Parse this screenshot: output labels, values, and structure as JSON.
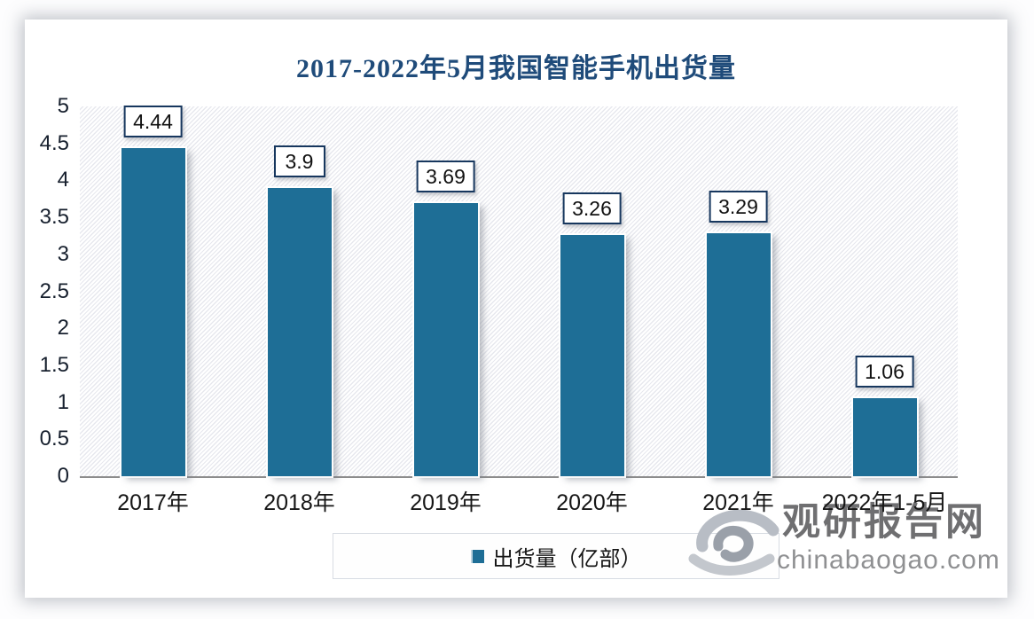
{
  "chart_data": {
    "type": "bar",
    "title": "2017-2022年5月我国智能手机出货量",
    "title_color": "#1F4B7A",
    "categories": [
      "2017年",
      "2018年",
      "2019年",
      "2020年",
      "2021年",
      "2022年1-5月"
    ],
    "values": [
      4.44,
      3.9,
      3.69,
      3.26,
      3.29,
      1.06
    ],
    "value_labels": [
      "4.44",
      "3.9",
      "3.69",
      "3.26",
      "3.29",
      "1.06"
    ],
    "series_name": "出货量（亿部）",
    "xlabel": "",
    "ylabel": "",
    "ylim": [
      0,
      5
    ],
    "yticks": [
      5,
      4.5,
      4,
      3.5,
      3,
      2.5,
      2,
      1.5,
      1,
      0.5,
      0
    ],
    "ytick_labels": [
      "5",
      "4.5",
      "4",
      "3.5",
      "3",
      "2.5",
      "2",
      "1.5",
      "1",
      "0.5",
      "0"
    ],
    "grid": false,
    "plot_background": "diagonal-hatch",
    "legend_position": "bottom-center",
    "bar_color": "#1E6E96",
    "value_box_border_color": "#17375E"
  },
  "legend": {
    "marker_color": "#1E6E96",
    "label": "出货量（亿部）"
  },
  "watermark": {
    "logo": "swirl-logo",
    "brand": "观研报告网",
    "domain": "chinabaogao.com"
  }
}
